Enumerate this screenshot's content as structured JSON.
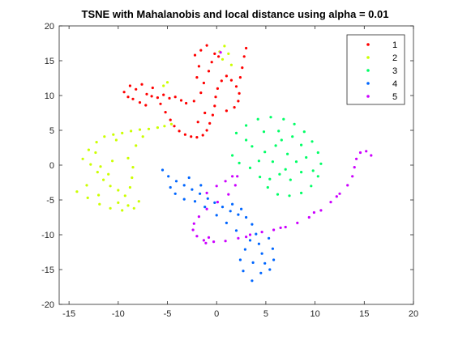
{
  "chart_data": {
    "type": "scatter",
    "title": "TSNE with Mahalanobis and local distance using alpha = 0.01",
    "xlabel": "",
    "ylabel": "",
    "xlim": [
      -16,
      20
    ],
    "ylim": [
      -20,
      20
    ],
    "xticks": [
      -15,
      -10,
      -5,
      0,
      5,
      10,
      15,
      20
    ],
    "yticks": [
      20,
      15,
      10,
      5,
      0,
      -5,
      -10,
      -15,
      -20
    ],
    "grid": false,
    "legend_position": "top-right",
    "series": [
      {
        "name": "1",
        "color": "#ff0000",
        "values": [
          [
            -9.4,
            10.5
          ],
          [
            -8.8,
            11.4
          ],
          [
            -8.2,
            10.9
          ],
          [
            -7.6,
            11.6
          ],
          [
            -7.1,
            10.2
          ],
          [
            -6.5,
            11.1
          ],
          [
            -6.0,
            9.7
          ],
          [
            -5.4,
            10.1
          ],
          [
            -4.8,
            9.6
          ],
          [
            -4.2,
            9.8
          ],
          [
            -3.6,
            9.3
          ],
          [
            -3.1,
            8.9
          ],
          [
            -8.5,
            9.5
          ],
          [
            -7.8,
            9.0
          ],
          [
            -7.2,
            8.6
          ],
          [
            -6.6,
            9.9
          ],
          [
            -9.0,
            9.8
          ],
          [
            -5.7,
            8.8
          ],
          [
            -5.2,
            7.6
          ],
          [
            -4.7,
            6.5
          ],
          [
            -4.3,
            5.6
          ],
          [
            -3.8,
            4.9
          ],
          [
            -3.2,
            4.4
          ],
          [
            -2.6,
            4.1
          ],
          [
            -2.0,
            4.0
          ],
          [
            -1.4,
            4.3
          ],
          [
            -1.0,
            5.0
          ],
          [
            -0.7,
            6.0
          ],
          [
            -0.4,
            7.2
          ],
          [
            -0.2,
            8.5
          ],
          [
            -0.1,
            9.8
          ],
          [
            0.1,
            11.0
          ],
          [
            0.5,
            12.1
          ],
          [
            1.0,
            12.8
          ],
          [
            -2.2,
            15.8
          ],
          [
            -1.6,
            16.5
          ],
          [
            -1.0,
            17.2
          ],
          [
            -0.2,
            16.0
          ],
          [
            -1.8,
            14.2
          ],
          [
            -0.8,
            13.5
          ],
          [
            -2.0,
            12.6
          ],
          [
            -1.3,
            11.8
          ],
          [
            -0.5,
            14.8
          ],
          [
            0.2,
            15.6
          ],
          [
            1.5,
            12.2
          ],
          [
            2.0,
            11.3
          ],
          [
            2.3,
            10.3
          ],
          [
            2.2,
            9.2
          ],
          [
            1.8,
            8.3
          ],
          [
            1.0,
            7.8
          ],
          [
            2.4,
            12.6
          ],
          [
            2.6,
            14.0
          ],
          [
            2.8,
            15.6
          ],
          [
            3.0,
            16.8
          ],
          [
            -1.6,
            10.4
          ],
          [
            -2.3,
            9.2
          ],
          [
            -1.2,
            7.5
          ],
          [
            -1.9,
            6.2
          ]
        ]
      },
      {
        "name": "2",
        "color": "#ccff00",
        "values": [
          [
            -13.6,
            0.9
          ],
          [
            -13.0,
            2.2
          ],
          [
            -12.2,
            3.3
          ],
          [
            -11.4,
            4.1
          ],
          [
            -10.5,
            4.4
          ],
          [
            -9.6,
            4.6
          ],
          [
            -8.7,
            4.9
          ],
          [
            -7.8,
            5.1
          ],
          [
            -6.9,
            5.2
          ],
          [
            -6.0,
            5.4
          ],
          [
            -5.3,
            5.6
          ],
          [
            -4.6,
            5.9
          ],
          [
            -12.8,
            0.1
          ],
          [
            -12.1,
            -1.0
          ],
          [
            -11.5,
            -2.1
          ],
          [
            -10.8,
            -3.0
          ],
          [
            -10.0,
            -3.6
          ],
          [
            -9.3,
            -4.4
          ],
          [
            -8.8,
            -3.2
          ],
          [
            -8.6,
            -1.8
          ],
          [
            -8.5,
            -0.3
          ],
          [
            -7.9,
            -5.2
          ],
          [
            -8.4,
            -6.2
          ],
          [
            -9.6,
            -6.5
          ],
          [
            -10.8,
            -6.2
          ],
          [
            -11.9,
            -5.6
          ],
          [
            -13.1,
            -4.7
          ],
          [
            -14.2,
            -3.8
          ],
          [
            -13.2,
            -2.9
          ],
          [
            -12.0,
            -4.3
          ],
          [
            -10.0,
            -5.4
          ],
          [
            -9.0,
            -5.8
          ],
          [
            -11.0,
            -1.3
          ],
          [
            -12.3,
            1.8
          ],
          [
            -10.2,
            3.6
          ],
          [
            -8.2,
            2.8
          ],
          [
            -7.5,
            4.1
          ],
          [
            -9.0,
            1.0
          ],
          [
            -10.6,
            0.6
          ],
          [
            -11.8,
            -0.2
          ],
          [
            -5.0,
            11.9
          ],
          [
            -5.4,
            11.4
          ],
          [
            0.3,
            16.3
          ],
          [
            0.8,
            17.1
          ],
          [
            1.2,
            16.0
          ],
          [
            0.6,
            15.2
          ],
          [
            1.5,
            14.4
          ]
        ]
      },
      {
        "name": "3",
        "color": "#00ff66",
        "values": [
          [
            2.0,
            4.6
          ],
          [
            3.0,
            5.7
          ],
          [
            4.2,
            6.6
          ],
          [
            5.5,
            6.9
          ],
          [
            6.8,
            6.6
          ],
          [
            7.9,
            5.9
          ],
          [
            8.9,
            4.8
          ],
          [
            9.7,
            3.4
          ],
          [
            10.3,
            1.8
          ],
          [
            10.6,
            0.2
          ],
          [
            10.3,
            -1.6
          ],
          [
            9.6,
            -3.0
          ],
          [
            8.6,
            -4.0
          ],
          [
            7.4,
            -4.4
          ],
          [
            6.2,
            -4.2
          ],
          [
            5.2,
            -3.2
          ],
          [
            4.4,
            -1.7
          ],
          [
            3.4,
            -0.4
          ],
          [
            2.3,
            0.3
          ],
          [
            1.6,
            1.4
          ],
          [
            4.8,
            4.8
          ],
          [
            6.3,
            4.9
          ],
          [
            7.7,
            4.1
          ],
          [
            8.6,
            2.9
          ],
          [
            9.1,
            1.1
          ],
          [
            8.6,
            -1.0
          ],
          [
            7.5,
            -2.1
          ],
          [
            6.4,
            -1.3
          ],
          [
            5.7,
            0.5
          ],
          [
            4.9,
            1.9
          ],
          [
            3.6,
            2.7
          ],
          [
            6.0,
            2.8
          ],
          [
            7.2,
            1.6
          ],
          [
            7.0,
            -0.6
          ],
          [
            5.4,
            -2.0
          ],
          [
            3.0,
            3.6
          ],
          [
            9.8,
            -0.8
          ],
          [
            4.3,
            0.6
          ],
          [
            8.1,
            0.5
          ],
          [
            6.6,
            3.6
          ]
        ]
      },
      {
        "name": "4",
        "color": "#0066ff",
        "values": [
          [
            -5.5,
            -0.7
          ],
          [
            -4.9,
            -1.6
          ],
          [
            -4.1,
            -2.3
          ],
          [
            -3.3,
            -2.9
          ],
          [
            -2.5,
            -3.5
          ],
          [
            -1.7,
            -4.1
          ],
          [
            -0.9,
            -4.8
          ],
          [
            -0.2,
            -5.4
          ],
          [
            0.6,
            -6.0
          ],
          [
            1.4,
            -6.6
          ],
          [
            2.2,
            -7.1
          ],
          [
            3.0,
            -7.5
          ],
          [
            3.6,
            -8.5
          ],
          [
            4.0,
            -9.9
          ],
          [
            4.3,
            -11.3
          ],
          [
            4.6,
            -12.7
          ],
          [
            4.9,
            -14.1
          ],
          [
            4.5,
            -15.5
          ],
          [
            3.6,
            -16.6
          ],
          [
            2.7,
            -15.2
          ],
          [
            2.4,
            -13.6
          ],
          [
            2.9,
            -12.1
          ],
          [
            3.4,
            -10.8
          ],
          [
            5.3,
            -10.5
          ],
          [
            5.7,
            -12.0
          ],
          [
            5.8,
            -13.6
          ],
          [
            5.4,
            -15.0
          ],
          [
            -4.2,
            -4.1
          ],
          [
            -3.3,
            -4.9
          ],
          [
            -2.2,
            -5.2
          ],
          [
            -1.2,
            -6.0
          ],
          [
            0.0,
            -7.2
          ],
          [
            1.0,
            -8.3
          ],
          [
            2.0,
            -9.4
          ],
          [
            2.5,
            -6.3
          ],
          [
            1.6,
            -5.6
          ],
          [
            -4.7,
            -3.2
          ],
          [
            -2.8,
            -1.8
          ],
          [
            -1.6,
            -2.9
          ],
          [
            3.7,
            -14.0
          ]
        ]
      },
      {
        "name": "5",
        "color": "#cc00ff",
        "values": [
          [
            -1.0,
            -4.0
          ],
          [
            0.0,
            -3.0
          ],
          [
            0.9,
            -2.3
          ],
          [
            1.6,
            -1.6
          ],
          [
            2.1,
            -1.6
          ],
          [
            1.9,
            -2.9
          ],
          [
            1.2,
            -4.2
          ],
          [
            0.1,
            -5.3
          ],
          [
            -1.0,
            -6.3
          ],
          [
            -1.8,
            -7.4
          ],
          [
            -2.3,
            -8.4
          ],
          [
            -2.4,
            -9.3
          ],
          [
            -2.0,
            -10.2
          ],
          [
            -1.3,
            -10.8
          ],
          [
            -0.3,
            -11.0
          ],
          [
            0.9,
            -10.9
          ],
          [
            2.2,
            -10.5
          ],
          [
            3.4,
            -10.0
          ],
          [
            4.6,
            -9.6
          ],
          [
            5.8,
            -9.3
          ],
          [
            7.0,
            -8.9
          ],
          [
            8.2,
            -8.3
          ],
          [
            9.4,
            -7.5
          ],
          [
            10.6,
            -6.5
          ],
          [
            11.6,
            -5.3
          ],
          [
            12.5,
            -4.1
          ],
          [
            13.3,
            -2.9
          ],
          [
            13.8,
            -1.6
          ],
          [
            14.0,
            -0.3
          ],
          [
            14.2,
            0.9
          ],
          [
            14.6,
            1.8
          ],
          [
            15.2,
            2.0
          ],
          [
            15.7,
            1.4
          ],
          [
            0.4,
            16.2
          ],
          [
            -1.1,
            -11.2
          ],
          [
            6.5,
            -9.0
          ],
          [
            9.9,
            -6.8
          ],
          [
            12.2,
            -4.5
          ],
          [
            3.0,
            -10.3
          ],
          [
            -0.8,
            -10.4
          ]
        ]
      }
    ]
  }
}
